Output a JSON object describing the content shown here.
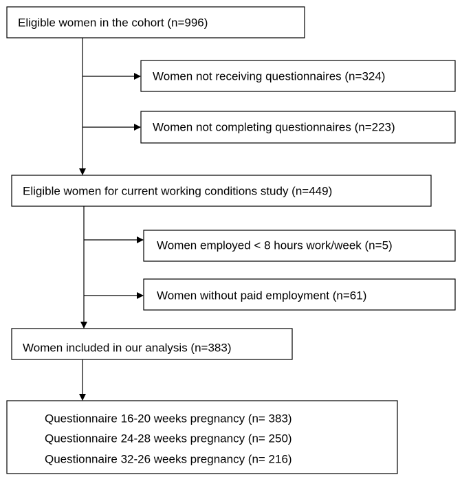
{
  "nodes": [
    {
      "label": "Eligible women in the cohort (n=996)"
    },
    {
      "label": "Women not receiving questionnaires (n=324)"
    },
    {
      "label": "Women not completing questionnaires (n=223)"
    },
    {
      "label": "Eligible women for current working conditions study (n=449)"
    },
    {
      "label": "Women employed < 8 hours work/week (n=5)"
    },
    {
      "label": "Women without paid employment (n=61)"
    },
    {
      "label": "Women included in our analysis (n=383)"
    },
    {
      "lines": [
        "Questionnaire 16-20 weeks pregnancy (n= 383)",
        "Questionnaire 24-28 weeks pregnancy (n= 250)",
        "Questionnaire 32-26 weeks pregnancy (n= 216)"
      ]
    }
  ]
}
